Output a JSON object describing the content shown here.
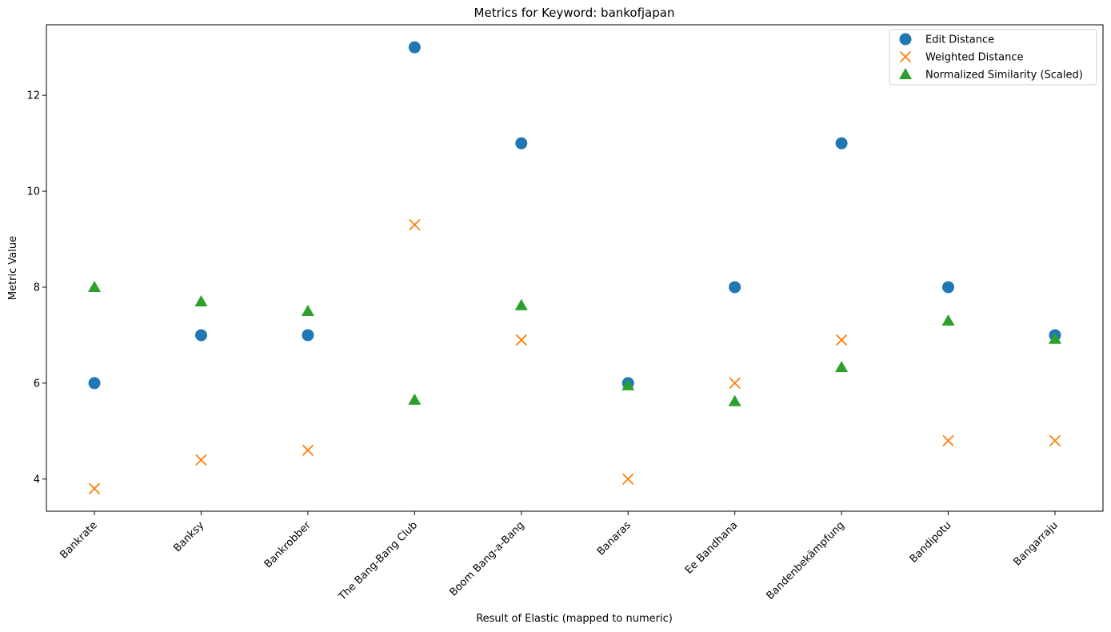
{
  "chart_data": {
    "type": "scatter",
    "title": "Metrics for Keyword: bankofjapan",
    "xlabel": "Result of Elastic (mapped to numeric)",
    "ylabel": "Metric Value",
    "categories": [
      "Bankrate",
      "Banksy",
      "Bankrobber",
      "The Bang-Bang Club",
      "Boom Bang-a-Bang",
      "Banaras",
      "Ee Bandhana",
      "Bandenbekämpfung",
      "Bandipotu",
      "Bangarraju"
    ],
    "ylim": [
      3.33,
      13.47
    ],
    "yticks": [
      4,
      6,
      8,
      10,
      12
    ],
    "grid": false,
    "legend_position": "upper right",
    "series": [
      {
        "name": "Edit Distance",
        "marker": "circle",
        "color": "#1f77b4",
        "values": [
          6,
          7,
          7,
          13,
          11,
          6,
          8,
          11,
          8,
          7
        ]
      },
      {
        "name": "Weighted Distance",
        "marker": "x",
        "color": "#ff7f0e",
        "values": [
          3.8,
          4.4,
          4.6,
          9.3,
          6.9,
          4.0,
          6.0,
          6.9,
          4.8,
          4.8
        ]
      },
      {
        "name": "Normalized Similarity (Scaled)",
        "marker": "triangle",
        "color": "#2ca02c",
        "values": [
          8.0,
          7.7,
          7.5,
          5.65,
          7.62,
          5.95,
          5.62,
          6.33,
          7.3,
          6.92
        ]
      }
    ]
  }
}
